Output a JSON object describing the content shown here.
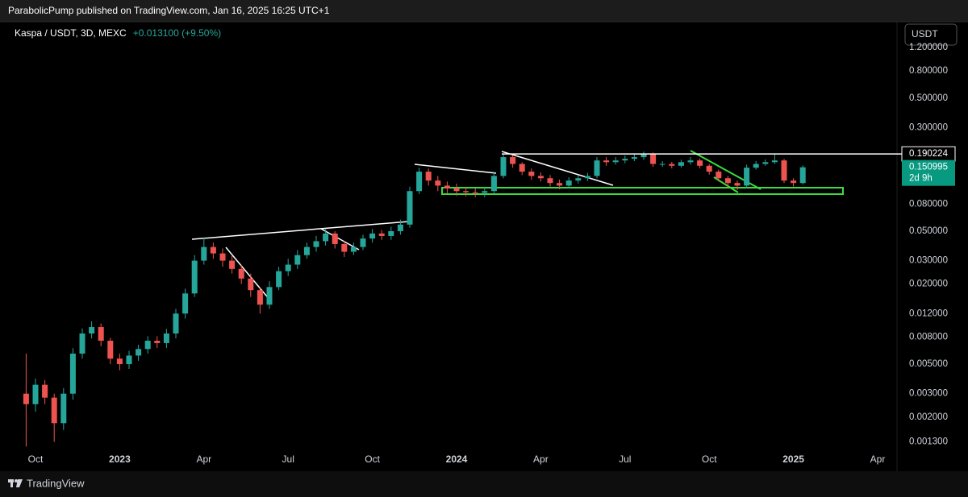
{
  "header": {
    "publisher": "ParabolicPump published on TradingView.com, Jan 16, 2025 16:25 UTC+1"
  },
  "footer": {
    "brand": "TradingView"
  },
  "chart_data": {
    "type": "candlestick",
    "title": "Kaspa / USDT, 3D, MEXC",
    "change": "+0.013100 (+9.50%)",
    "currency": "USDT",
    "log_scale": true,
    "grid": false,
    "up_color": "#26a69a",
    "down_color": "#ef5350",
    "categories": [
      null,
      "Oct",
      null,
      null,
      null,
      null,
      null,
      null,
      null,
      null,
      "2023",
      null,
      null,
      null,
      null,
      null,
      null,
      null,
      null,
      "Apr",
      null,
      null,
      null,
      null,
      null,
      null,
      null,
      null,
      "Jul",
      null,
      null,
      null,
      null,
      null,
      null,
      null,
      null,
      "Oct",
      null,
      null,
      null,
      null,
      null,
      null,
      null,
      null,
      "2024",
      null,
      null,
      null,
      null,
      null,
      null,
      null,
      null,
      "Apr",
      null,
      null,
      null,
      null,
      null,
      null,
      null,
      null,
      "Jul",
      null,
      null,
      null,
      null,
      null,
      null,
      null,
      null,
      "Oct",
      null,
      null,
      null,
      null,
      null,
      null,
      null,
      null,
      "2025",
      null,
      null,
      null,
      null,
      null,
      null,
      null,
      null,
      "Apr",
      null
    ],
    "open": [
      0.003,
      0.0025,
      0.0035,
      0.0028,
      0.0018,
      0.003,
      0.006,
      0.0085,
      0.0095,
      0.0075,
      0.0055,
      0.005,
      0.0058,
      0.0065,
      0.0075,
      0.0072,
      0.0085,
      0.012,
      0.017,
      0.03,
      0.038,
      0.034,
      0.03,
      0.026,
      0.022,
      0.018,
      0.014,
      0.019,
      0.025,
      0.028,
      0.033,
      0.038,
      0.042,
      0.048,
      0.04,
      0.035,
      0.038,
      0.044,
      0.048,
      0.046,
      0.05,
      0.056,
      0.1,
      0.14,
      0.12,
      0.11,
      0.105,
      0.1,
      0.098,
      0.097,
      0.1,
      0.13,
      0.18,
      0.16,
      0.14,
      0.13,
      0.125,
      0.115,
      0.11,
      0.12,
      0.125,
      0.13,
      0.17,
      0.165,
      0.17,
      0.175,
      0.18,
      0.19,
      0.16,
      0.16,
      0.155,
      0.165,
      0.17,
      0.155,
      0.14,
      0.125,
      0.115,
      0.11,
      0.15,
      0.16,
      0.165,
      0.17,
      0.12,
      0.115,
      null,
      null,
      null,
      null,
      null,
      null,
      null,
      null,
      null
    ],
    "high": [
      0.006,
      0.0039,
      0.0038,
      0.003,
      0.0033,
      0.0066,
      0.0093,
      0.0105,
      0.0101,
      0.0079,
      0.006,
      0.0063,
      0.007,
      0.0081,
      0.0081,
      0.0092,
      0.013,
      0.0185,
      0.033,
      0.045,
      0.041,
      0.037,
      0.033,
      0.028,
      0.024,
      0.019,
      0.021,
      0.027,
      0.031,
      0.036,
      0.041,
      0.046,
      0.052,
      0.05,
      0.042,
      0.041,
      0.047,
      0.052,
      0.051,
      0.054,
      0.061,
      0.108,
      0.15,
      0.148,
      0.13,
      0.118,
      0.114,
      0.108,
      0.105,
      0.107,
      0.14,
      0.192,
      0.186,
      0.165,
      0.148,
      0.138,
      0.132,
      0.122,
      0.127,
      0.132,
      0.137,
      0.18,
      0.18,
      0.18,
      0.185,
      0.19,
      0.198,
      0.195,
      0.168,
      0.166,
      0.172,
      0.18,
      0.176,
      0.16,
      0.145,
      0.13,
      0.12,
      0.158,
      0.168,
      0.173,
      0.19,
      0.175,
      0.125,
      0.156,
      null,
      null,
      null,
      null,
      null,
      null,
      null,
      null,
      null
    ],
    "low": [
      0.0012,
      0.0022,
      0.0025,
      0.0013,
      0.0016,
      0.0027,
      0.0055,
      0.0078,
      0.0068,
      0.005,
      0.0045,
      0.0046,
      0.0053,
      0.006,
      0.0066,
      0.0066,
      0.0078,
      0.011,
      0.016,
      0.028,
      0.031,
      0.027,
      0.024,
      0.02,
      0.016,
      0.012,
      0.013,
      0.018,
      0.023,
      0.026,
      0.031,
      0.035,
      0.039,
      0.037,
      0.032,
      0.033,
      0.036,
      0.041,
      0.043,
      0.043,
      0.047,
      0.053,
      0.095,
      0.11,
      0.1,
      0.096,
      0.092,
      0.091,
      0.09,
      0.09,
      0.095,
      0.125,
      0.15,
      0.132,
      0.122,
      0.118,
      0.108,
      0.103,
      0.105,
      0.114,
      0.119,
      0.125,
      0.155,
      0.158,
      0.162,
      0.168,
      0.172,
      0.152,
      0.152,
      0.148,
      0.15,
      0.158,
      0.148,
      0.133,
      0.118,
      0.108,
      0.102,
      0.105,
      0.145,
      0.155,
      0.16,
      0.115,
      0.108,
      0.112,
      null,
      null,
      null,
      null,
      null,
      null,
      null,
      null,
      null
    ],
    "close": [
      0.0025,
      0.0035,
      0.0028,
      0.0018,
      0.003,
      0.006,
      0.0085,
      0.0095,
      0.0075,
      0.0055,
      0.005,
      0.0058,
      0.0065,
      0.0075,
      0.0072,
      0.0085,
      0.012,
      0.017,
      0.03,
      0.038,
      0.034,
      0.03,
      0.026,
      0.022,
      0.018,
      0.014,
      0.019,
      0.025,
      0.028,
      0.033,
      0.038,
      0.042,
      0.048,
      0.04,
      0.035,
      0.038,
      0.044,
      0.048,
      0.046,
      0.05,
      0.056,
      0.1,
      0.14,
      0.12,
      0.11,
      0.105,
      0.1,
      0.098,
      0.097,
      0.1,
      0.13,
      0.18,
      0.16,
      0.14,
      0.13,
      0.125,
      0.115,
      0.11,
      0.12,
      0.125,
      0.13,
      0.17,
      0.165,
      0.17,
      0.175,
      0.18,
      0.19,
      0.16,
      0.16,
      0.155,
      0.165,
      0.17,
      0.155,
      0.14,
      0.125,
      0.115,
      0.11,
      0.15,
      0.16,
      0.165,
      0.17,
      0.12,
      0.115,
      0.151,
      null,
      null,
      null,
      null,
      null,
      null,
      null,
      null,
      null
    ],
    "ylim": [
      0.00111,
      1.85
    ],
    "yticks": [
      {
        "value": 1.2,
        "label": "1.200000"
      },
      {
        "value": 0.8,
        "label": "0.800000"
      },
      {
        "value": 0.5,
        "label": "0.500000"
      },
      {
        "value": 0.3,
        "label": "0.300000"
      },
      {
        "value": 0.08,
        "label": "0.080000"
      },
      {
        "value": 0.05,
        "label": "0.050000"
      },
      {
        "value": 0.03,
        "label": "0.030000"
      },
      {
        "value": 0.02,
        "label": "0.020000"
      },
      {
        "value": 0.012,
        "label": "0.012000"
      },
      {
        "value": 0.008,
        "label": "0.008000"
      },
      {
        "value": 0.005,
        "label": "0.005000"
      },
      {
        "value": 0.003,
        "label": "0.003000"
      },
      {
        "value": 0.002,
        "label": "0.002000"
      },
      {
        "value": 0.0013,
        "label": "0.001300"
      }
    ],
    "horizontal_line": 0.190224,
    "last_price": 0.150995,
    "countdown": "2d 9h"
  }
}
